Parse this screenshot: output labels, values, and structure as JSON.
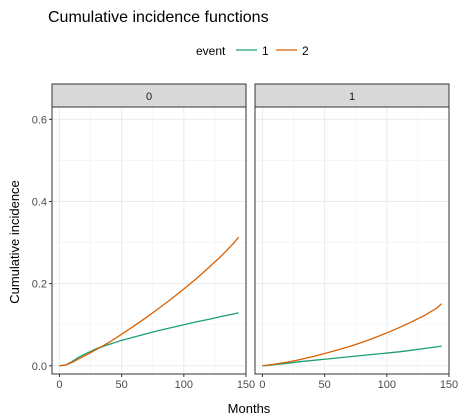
{
  "chart_data": {
    "type": "line",
    "title": "Cumulative incidence functions",
    "xlabel": "Months",
    "ylabel": "Cumulative incidence",
    "xlim": [
      -6,
      150
    ],
    "ylim": [
      -0.02,
      0.63
    ],
    "x_ticks": [
      0,
      50,
      100,
      150
    ],
    "x_tick_labels": [
      "0",
      "50",
      "100",
      "150"
    ],
    "y_ticks": [
      0.0,
      0.2,
      0.4,
      0.6
    ],
    "y_tick_labels": [
      "0.0",
      "0.2",
      "0.4",
      "0.6"
    ],
    "grid": true,
    "legend": {
      "title": "event",
      "position": "top",
      "entries": [
        {
          "label": "1",
          "color": "#1b9e77"
        },
        {
          "label": "2",
          "color": "#d95f02"
        }
      ]
    },
    "panels": [
      {
        "label": "0",
        "series": [
          {
            "name": "1",
            "color": "#1b9e77",
            "x": [
              0,
              5,
              10,
              15,
              20,
              25,
              30,
              40,
              50,
              60,
              70,
              80,
              90,
              100,
              110,
              120,
              130,
              140,
              144
            ],
            "y": [
              0,
              0.002,
              0.01,
              0.02,
              0.028,
              0.035,
              0.042,
              0.052,
              0.062,
              0.07,
              0.078,
              0.086,
              0.093,
              0.1,
              0.107,
              0.113,
              0.12,
              0.126,
              0.129
            ]
          },
          {
            "name": "2",
            "color": "#d95f02",
            "x": [
              0,
              5,
              10,
              15,
              20,
              25,
              30,
              40,
              50,
              60,
              70,
              80,
              90,
              100,
              110,
              120,
              130,
              140,
              144
            ],
            "y": [
              0,
              0.002,
              0.008,
              0.016,
              0.024,
              0.032,
              0.04,
              0.057,
              0.077,
              0.097,
              0.118,
              0.14,
              0.163,
              0.187,
              0.212,
              0.239,
              0.267,
              0.298,
              0.313
            ]
          }
        ]
      },
      {
        "label": "1",
        "series": [
          {
            "name": "1",
            "color": "#1b9e77",
            "x": [
              0,
              5,
              10,
              20,
              30,
              40,
              50,
              60,
              70,
              80,
              90,
              100,
              110,
              120,
              130,
              140,
              144
            ],
            "y": [
              0,
              0.001,
              0.003,
              0.006,
              0.01,
              0.013,
              0.016,
              0.019,
              0.022,
              0.025,
              0.028,
              0.031,
              0.034,
              0.038,
              0.042,
              0.046,
              0.048
            ]
          },
          {
            "name": "2",
            "color": "#d95f02",
            "x": [
              0,
              5,
              10,
              20,
              30,
              40,
              50,
              60,
              70,
              80,
              90,
              100,
              110,
              120,
              130,
              140,
              144
            ],
            "y": [
              0,
              0.002,
              0.004,
              0.009,
              0.015,
              0.022,
              0.03,
              0.038,
              0.047,
              0.057,
              0.068,
              0.08,
              0.093,
              0.107,
              0.122,
              0.14,
              0.151
            ]
          }
        ]
      }
    ]
  }
}
